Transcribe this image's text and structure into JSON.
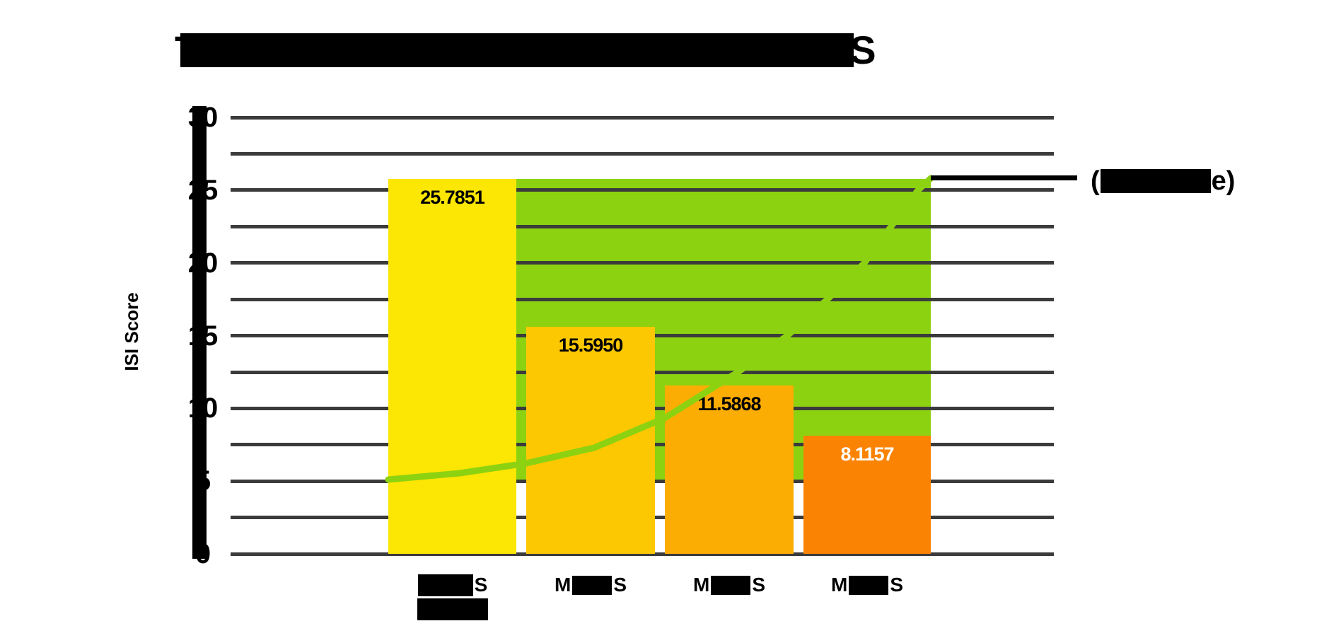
{
  "chart_data": {
    "type": "bar",
    "title": {
      "redacted": true,
      "visible_start": "T",
      "visible_end": "S"
    },
    "ylabel": "ISI Score",
    "ylim": [
      0,
      30
    ],
    "ytick_labels": [
      "30",
      "25",
      "20",
      "15",
      "10",
      "5",
      "0"
    ],
    "gridline_step": 2.5,
    "grid": "on",
    "categories": [
      {
        "redacted": true,
        "visible_start": "",
        "visible_end": "S",
        "lines": 2
      },
      {
        "redacted": true,
        "visible_start": "M",
        "visible_end": "S",
        "lines": 1
      },
      {
        "redacted": true,
        "visible_start": "M",
        "visible_end": "S",
        "lines": 1
      },
      {
        "redacted": true,
        "visible_start": "M",
        "visible_end": "S",
        "lines": 1
      }
    ],
    "values": [
      25.7851,
      15.595,
      11.5868,
      8.1157
    ],
    "value_labels": [
      "25.7851",
      "15.5950",
      "11.5868",
      "8.1157"
    ],
    "bar_colors": [
      "#fce603",
      "#fcc802",
      "#fcad03",
      "#fb8304"
    ],
    "value_label_colors": [
      "#000000",
      "#000000",
      "#000000",
      "#ffffff"
    ],
    "reference_band": {
      "color": "#8cd211",
      "value_from": 5,
      "value_to": 25.7851
    },
    "trend_curve": {
      "color": "#8cd211",
      "shape": "exponential-rise",
      "start_value": 5.1,
      "end_value": 25.8
    },
    "annotation": {
      "redacted": true,
      "visible_start": "(",
      "visible_end": "e)"
    },
    "legend_position": "right-of-plot"
  },
  "colors": {
    "background": "#ffffff",
    "gridline": "#3b3b3b",
    "axis": "#000000",
    "redaction": "#000000",
    "leader_line": "#000000"
  }
}
